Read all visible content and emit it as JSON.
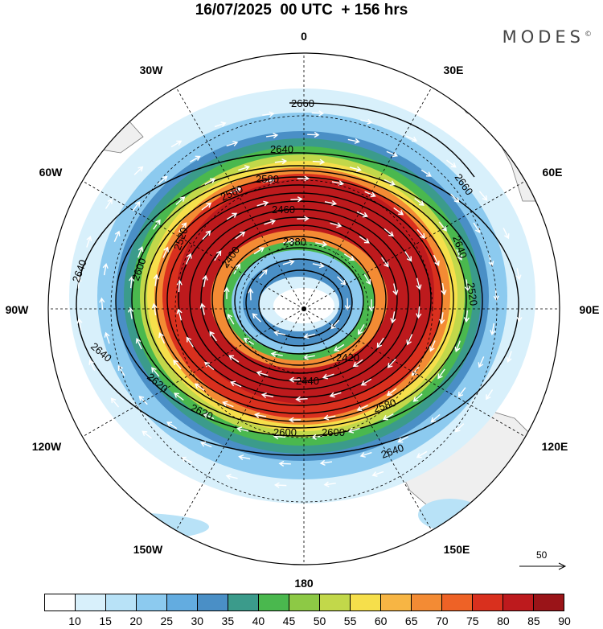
{
  "title": "16/07/2025  00 UTC  + 156 hrs",
  "brand": "MODES",
  "brand_mark": "©",
  "longitude_labels": [
    "0",
    "30E",
    "60E",
    "90E",
    "120E",
    "150E",
    "180",
    "150W",
    "120W",
    "90W",
    "60W",
    "30W"
  ],
  "contour_labels": [
    "2660",
    "2640",
    "2620",
    "2600",
    "2580",
    "2560",
    "2540",
    "2520",
    "2500",
    "2460",
    "2440",
    "2420",
    "2400",
    "2380"
  ],
  "reference_vector": {
    "label": "50"
  },
  "colorbar": {
    "colors": [
      "#ffffff",
      "#d8f0fb",
      "#b8e2f7",
      "#8ccaef",
      "#63ace0",
      "#4a8fc6",
      "#3b9b8b",
      "#4ab84e",
      "#8dc945",
      "#c2d84a",
      "#f6df4b",
      "#f7b544",
      "#f38b34",
      "#ee6226",
      "#d9301e",
      "#bd1a1d",
      "#9a1418"
    ],
    "labels": [
      "10",
      "15",
      "20",
      "25",
      "30",
      "35",
      "40",
      "45",
      "50",
      "55",
      "60",
      "65",
      "70",
      "75",
      "80",
      "85",
      "90"
    ]
  },
  "legend": {
    "units": "",
    "field": ""
  }
}
